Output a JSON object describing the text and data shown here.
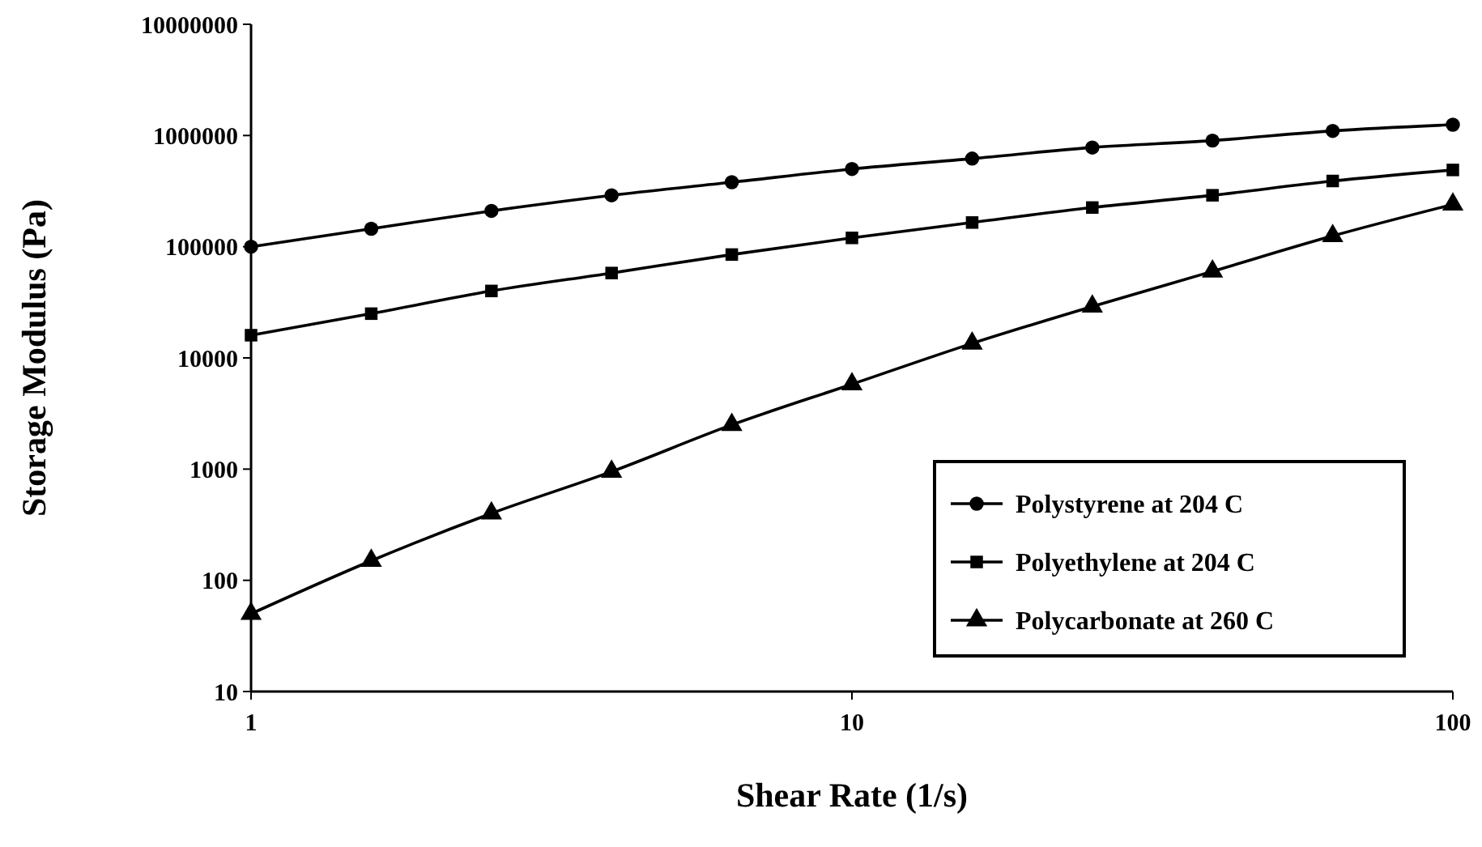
{
  "chart_data": {
    "type": "line",
    "xlabel": "Shear Rate (1/s)",
    "ylabel": "Storage Modulus (Pa)",
    "log": "xy",
    "grid": false,
    "legend": "bottom right",
    "line_style": "solid",
    "x": [
      1,
      1.585,
      2.512,
      3.981,
      6.31,
      10,
      15.85,
      25.12,
      39.81,
      63.1,
      100
    ],
    "xlim": [
      1,
      100
    ],
    "xticks": [
      1,
      10,
      100
    ],
    "ylim": [
      10,
      10000000
    ],
    "yticks": [
      10,
      100,
      1000,
      10000,
      100000,
      1000000,
      10000000
    ],
    "series": [
      {
        "name": "Polystyrene at 204 C",
        "color": "#000000",
        "marker": "circle",
        "values": [
          100000,
          145000,
          210000,
          290000,
          380000,
          500000,
          620000,
          780000,
          900000,
          1100000,
          1250000
        ]
      },
      {
        "name": "Polyethylene at 204 C",
        "color": "#000000",
        "marker": "square",
        "values": [
          16000,
          25000,
          40000,
          58000,
          85000,
          120000,
          165000,
          225000,
          290000,
          390000,
          490000
        ]
      },
      {
        "name": "Polycarbonate at 260 C",
        "color": "#000000",
        "marker": "triangle",
        "values": [
          50,
          150,
          400,
          950,
          2500,
          5800,
          13500,
          29000,
          60000,
          125000,
          240000
        ]
      }
    ]
  }
}
